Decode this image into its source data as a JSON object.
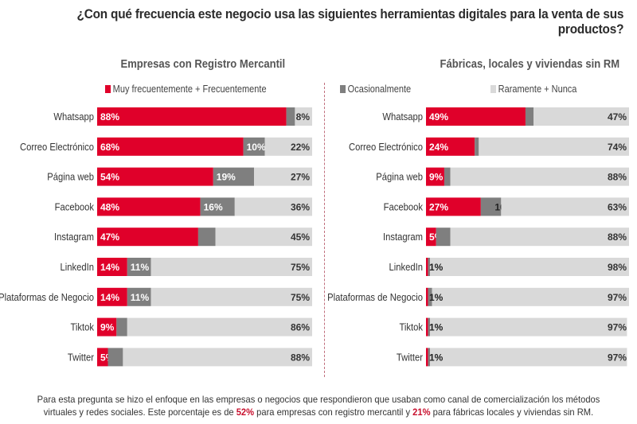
{
  "title": "¿Con qué frecuencia este negocio usa las siguientes herramientas digitales para la venta de sus productos?",
  "legend": [
    {
      "label": "Muy frecuentemente + Frecuentemente",
      "color": "#e0002a"
    },
    {
      "label": "Ocasionalmente",
      "color": "#7f7f7f"
    },
    {
      "label": "Raramente + Nunca",
      "color": "#d9d9d9"
    }
  ],
  "footnote": {
    "part1": "Para esta pregunta se hizo el enfoque en las empresas o negocios que respondieron que usaban como canal de comercialización los métodos",
    "part2": "virtuales y redes sociales. Este porcentaje es de ",
    "hl1": "52%",
    "part3": " para empresas con registro mercantil y ",
    "hl2": "21%",
    "part4": " para fábricas locales y viviendas sin RM."
  },
  "chart_data": [
    {
      "type": "bar",
      "orientation": "horizontal-stacked-100",
      "title": "Empresas con Registro Mercantil",
      "categories": [
        "Whatsapp",
        "Correo Electrónico",
        "Página web",
        "Facebook",
        "Instagram",
        "LinkedIn",
        "Plataformas de Negocio",
        "Tiktok",
        "Twitter"
      ],
      "series": [
        {
          "name": "Muy frecuentemente + Frecuentemente",
          "values": [
            88,
            68,
            54,
            48,
            47,
            14,
            14,
            9,
            5
          ]
        },
        {
          "name": "Ocasionalmente",
          "values": [
            4,
            10,
            19,
            16,
            8,
            11,
            11,
            5,
            7
          ]
        },
        {
          "name": "Raramente + Nunca",
          "values": [
            8,
            22,
            27,
            36,
            45,
            75,
            75,
            86,
            88
          ]
        }
      ],
      "xlim": [
        0,
        100
      ],
      "unit": "%"
    },
    {
      "type": "bar",
      "orientation": "horizontal-stacked-100",
      "title": "Fábricas, locales y viviendas sin RM",
      "categories": [
        "Whatsapp",
        "Correo Electrónico",
        "Página web",
        "Facebook",
        "Instagram",
        "LinkedIn",
        "Plataformas de Negocio",
        "Tiktok",
        "Twitter"
      ],
      "series": [
        {
          "name": "Muy frecuentemente + Frecuentemente",
          "values": [
            49,
            24,
            9,
            27,
            5,
            1,
            1,
            1,
            1
          ]
        },
        {
          "name": "Ocasionalmente",
          "values": [
            4,
            2,
            3,
            10,
            7,
            1,
            2,
            1,
            1
          ]
        },
        {
          "name": "Raramente + Nunca",
          "values": [
            47,
            74,
            88,
            63,
            88,
            98,
            97,
            97,
            97
          ]
        }
      ],
      "xlim": [
        0,
        100
      ],
      "unit": "%"
    }
  ]
}
